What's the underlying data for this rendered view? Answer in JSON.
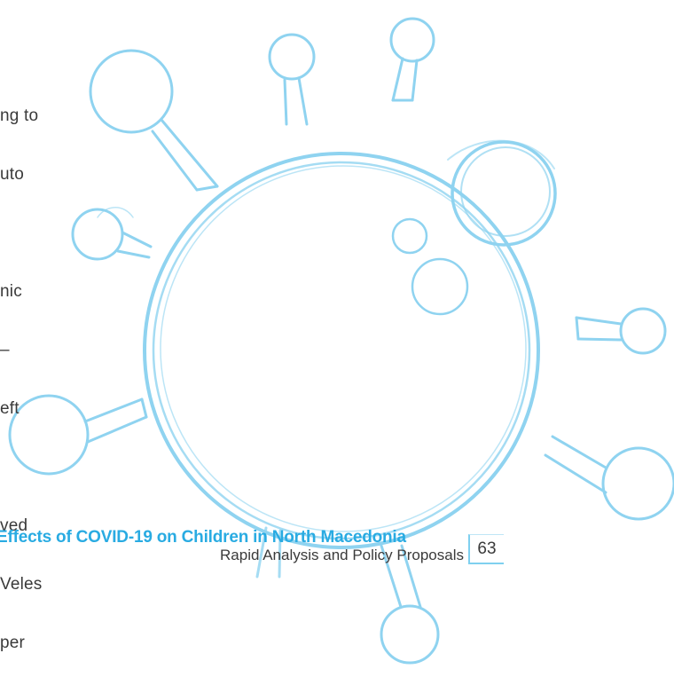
{
  "body_lines": [
    "ng to",
    "uto",
    "",
    "nic",
    "–",
    "eft",
    "",
    "ved",
    "Veles",
    "per"
  ],
  "footer": {
    "title": "Effects of COVID-19 on Children in North Macedonia",
    "subtitle": "Rapid Analysis and Policy Proposals",
    "page_number": "63"
  },
  "colors": {
    "accent": "#29abe2",
    "illustration_stroke": "#8fd3f0"
  },
  "illustration": "virus-illustration"
}
